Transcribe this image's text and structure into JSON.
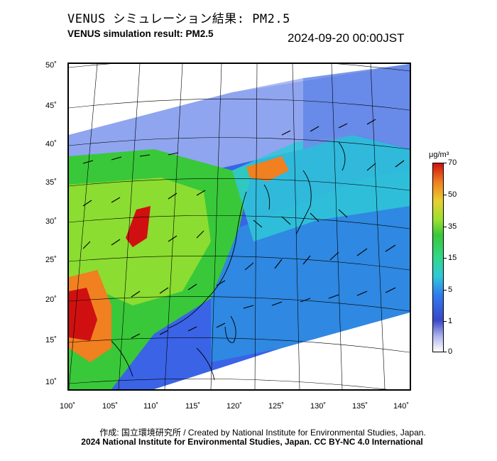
{
  "header": {
    "title_jp": "VENUS シミュレーション結果: PM2.5",
    "title_en": "VENUS simulation result: PM2.5",
    "timestamp": "2024-09-20 00:00JST"
  },
  "map": {
    "lat_labels": [
      "50˚",
      "45˚",
      "40˚",
      "35˚",
      "30˚",
      "25˚",
      "20˚",
      "15˚",
      "10˚"
    ],
    "lon_labels": [
      "100˚",
      "105˚",
      "110˚",
      "115˚",
      "120˚",
      "125˚",
      "130˚",
      "135˚",
      "140˚"
    ]
  },
  "colorbar": {
    "unit": "μg/m³",
    "ticks": [
      "70",
      "50",
      "35",
      "15",
      "5",
      "1",
      "0"
    ],
    "colors": [
      "#d01010",
      "#f08020",
      "#e8d030",
      "#39c83a",
      "#2fc8d8",
      "#3848c8",
      "#ffffff"
    ]
  },
  "footer": {
    "credit_line1": "作成: 国立環境研究所 / Created by National Institute for Environmental Studies, Japan.",
    "credit_line2": "2024 National Institute for Environmental Studies, Japan. CC BY-NC 4.0 International"
  }
}
